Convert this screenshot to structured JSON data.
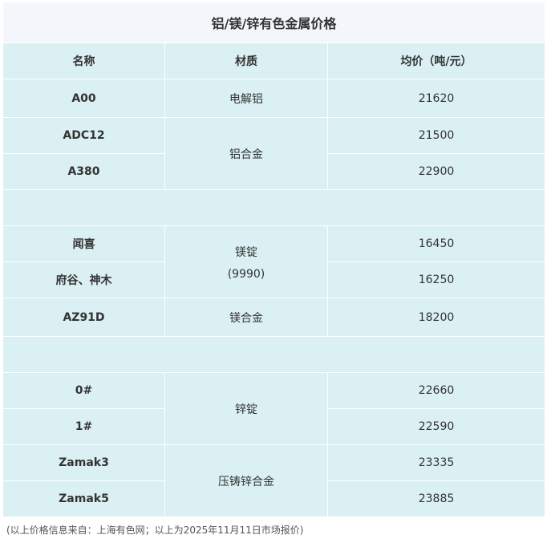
{
  "title": "铝/镁/锌有色金属价格",
  "headers": [
    "名称",
    "材质",
    "均价（吨/元）"
  ],
  "rows": [
    {
      "name": "A00",
      "material": "电解铝",
      "price": "21620"
    },
    {
      "name": "ADC12",
      "material": "铝合金",
      "price": "21500"
    },
    {
      "name": "A380",
      "price": "22900"
    },
    {
      "name": "闻喜",
      "material": "镁锭",
      "material2": "(9990)",
      "price": "16450"
    },
    {
      "name": "府谷、神木",
      "price": "16250"
    },
    {
      "name": "AZ91D",
      "material": "镁合金",
      "price": "18200"
    },
    {
      "name": "0#",
      "material": "锌锭",
      "price": "22660"
    },
    {
      "name": "1#",
      "price": "22590"
    },
    {
      "name": "Zamak3",
      "material": "压铸锌合金",
      "price": "23335"
    },
    {
      "name": "Zamak5",
      "price": "23885"
    }
  ],
  "footer": "(以上价格信息来自：上海有色网；以上为2025年11月11日市场报价)"
}
